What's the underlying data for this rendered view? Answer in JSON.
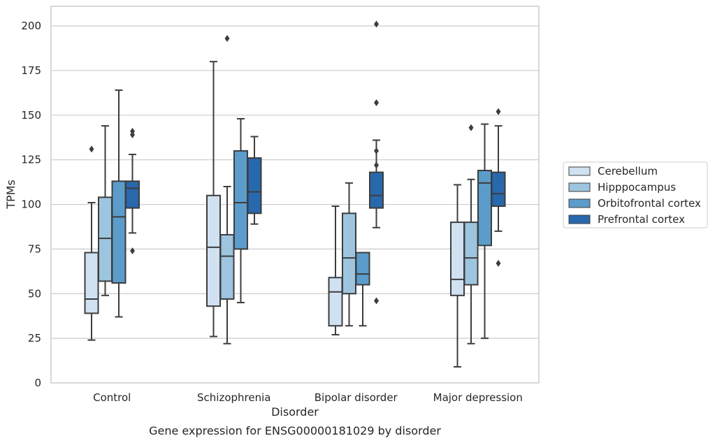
{
  "chart_data": {
    "type": "box",
    "caption": "Gene expression for ENSG00000181029 by disorder",
    "xlabel": "Disorder",
    "ylabel": "TPMs",
    "ylim": [
      0,
      211
    ],
    "yticks": [
      0,
      25,
      50,
      75,
      100,
      125,
      150,
      175,
      200
    ],
    "grid": "horizontal",
    "legend_position": "right",
    "categories": [
      "Control",
      "Schizophrenia",
      "Bipolar disorder",
      "Major depression"
    ],
    "series": [
      {
        "name": "Cerebellum",
        "color": "#d0e1f1",
        "boxes": [
          {
            "whislo": 24,
            "q1": 39,
            "med": 47,
            "q3": 73,
            "whishi": 101,
            "fliers": [
              131
            ]
          },
          {
            "whislo": 26,
            "q1": 43,
            "med": 76,
            "q3": 105,
            "whishi": 180,
            "fliers": []
          },
          {
            "whislo": 27,
            "q1": 32,
            "med": 51,
            "q3": 59,
            "whishi": 99,
            "fliers": []
          },
          {
            "whislo": 9,
            "q1": 49,
            "med": 58,
            "q3": 90,
            "whishi": 111,
            "fliers": []
          }
        ]
      },
      {
        "name": "Hipppocampus",
        "color": "#9ec5df",
        "boxes": [
          {
            "whislo": 49,
            "q1": 57,
            "med": 81,
            "q3": 104,
            "whishi": 144,
            "fliers": []
          },
          {
            "whislo": 22,
            "q1": 47,
            "med": 71,
            "q3": 83,
            "whishi": 110,
            "fliers": [
              193
            ]
          },
          {
            "whislo": 32,
            "q1": 50,
            "med": 70,
            "q3": 95,
            "whishi": 112,
            "fliers": []
          },
          {
            "whislo": 22,
            "q1": 55,
            "med": 70,
            "q3": 90,
            "whishi": 114,
            "fliers": [
              143
            ]
          }
        ]
      },
      {
        "name": "Orbitofrontal cortex",
        "color": "#5b9ccb",
        "boxes": [
          {
            "whislo": 37,
            "q1": 56,
            "med": 93,
            "q3": 113,
            "whishi": 164,
            "fliers": []
          },
          {
            "whislo": 45,
            "q1": 75,
            "med": 101,
            "q3": 130,
            "whishi": 148,
            "fliers": []
          },
          {
            "whislo": 32,
            "q1": 55,
            "med": 61,
            "q3": 73,
            "whishi": 73,
            "fliers": []
          },
          {
            "whislo": 25,
            "q1": 77,
            "med": 112,
            "q3": 119,
            "whishi": 145,
            "fliers": []
          }
        ]
      },
      {
        "name": "Prefrontal cortex",
        "color": "#2868ad",
        "boxes": [
          {
            "whislo": 84,
            "q1": 98,
            "med": 109,
            "q3": 113,
            "whishi": 128,
            "fliers": [
              74,
              139,
              141
            ]
          },
          {
            "whislo": 89,
            "q1": 95,
            "med": 107,
            "q3": 126,
            "whishi": 138,
            "fliers": []
          },
          {
            "whislo": 87,
            "q1": 98,
            "med": 105,
            "q3": 118,
            "whishi": 136,
            "fliers": [
              46,
              122,
              130,
              157,
              201
            ]
          },
          {
            "whislo": 85,
            "q1": 99,
            "med": 106,
            "q3": 118,
            "whishi": 144,
            "fliers": [
              67,
              152
            ]
          }
        ]
      }
    ]
  }
}
